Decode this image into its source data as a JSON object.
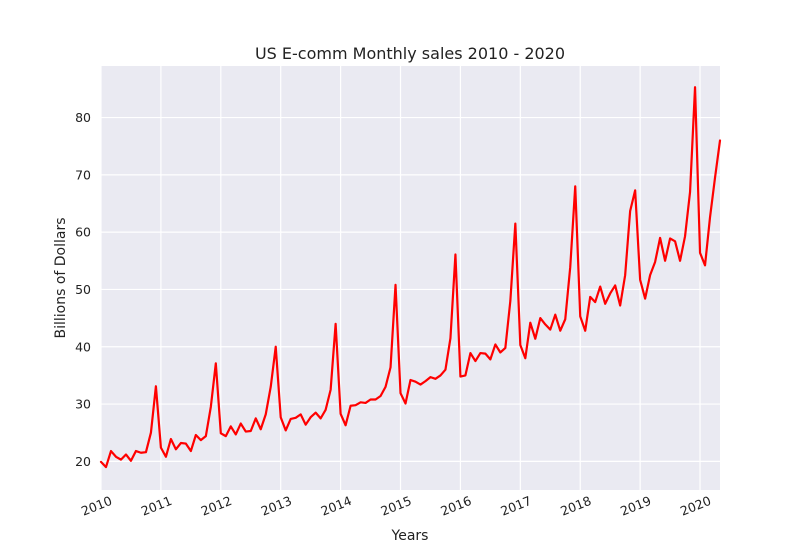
{
  "chart_data": {
    "type": "line",
    "title": "US E-comm Monthly sales 2010 - 2020",
    "xlabel": "Years",
    "ylabel": "Billions of Dollars",
    "x_range": [
      "2010-01",
      "2020-05"
    ],
    "xlim": [
      "2010-01-01",
      "2020-05-01"
    ],
    "x_ticks": [
      "2010",
      "2011",
      "2012",
      "2013",
      "2014",
      "2015",
      "2016",
      "2017",
      "2018",
      "2019",
      "2020"
    ],
    "ylim": [
      15,
      89
    ],
    "y_ticks": [
      20,
      30,
      40,
      50,
      60,
      70,
      80
    ],
    "grid": true,
    "series": [
      {
        "color": "#ff0000",
        "values": [
          19.9,
          19.0,
          21.8,
          20.8,
          20.3,
          21.2,
          20.1,
          21.8,
          21.5,
          21.6,
          25.0,
          33.1,
          22.4,
          20.8,
          23.9,
          22.1,
          23.2,
          23.1,
          21.8,
          24.6,
          23.7,
          24.4,
          29.5,
          37.1,
          24.9,
          24.4,
          26.1,
          24.7,
          26.6,
          25.2,
          25.3,
          27.5,
          25.6,
          28.2,
          33.0,
          40.0,
          27.7,
          25.4,
          27.4,
          27.6,
          28.2,
          26.4,
          27.7,
          28.5,
          27.5,
          29.0,
          32.5,
          44.0,
          28.3,
          26.3,
          29.7,
          29.8,
          30.3,
          30.2,
          30.8,
          30.8,
          31.4,
          33.0,
          36.4,
          50.8,
          31.9,
          30.1,
          34.2,
          33.9,
          33.4,
          34.0,
          34.7,
          34.4,
          35.0,
          36.0,
          41.5,
          56.1,
          34.8,
          35.0,
          38.9,
          37.5,
          38.9,
          38.8,
          37.8,
          40.4,
          39.0,
          39.8,
          48.0,
          61.5,
          40.3,
          38.0,
          44.2,
          41.4,
          45.0,
          43.9,
          43.0,
          45.6,
          42.8,
          44.8,
          53.9,
          68.0,
          45.3,
          42.8,
          48.7,
          47.8,
          50.5,
          47.5,
          49.3,
          50.7,
          47.2,
          52.5,
          63.7,
          67.3,
          51.7,
          48.4,
          52.5,
          54.8,
          59.0,
          55.0,
          58.9,
          58.4,
          55.0,
          59.3,
          67.0,
          85.3,
          56.4,
          54.2,
          62.6,
          69.5,
          76.0
        ]
      }
    ]
  }
}
